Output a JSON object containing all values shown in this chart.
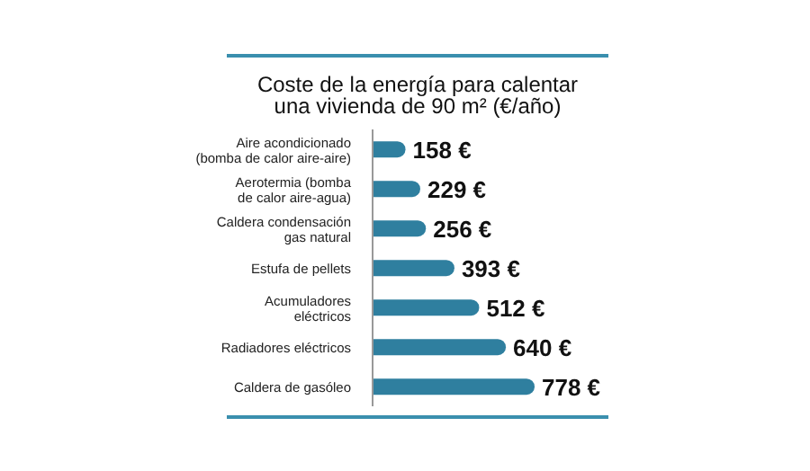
{
  "chart_data": {
    "type": "bar",
    "orientation": "horizontal",
    "title": "Coste de la energía para calentar\nuna vivienda de 90 m² (€/año)",
    "categories": [
      "Aire acondicionado\n(bomba de calor aire-aire)",
      "Aerotermia (bomba\nde calor aire-agua)",
      "Caldera condensación\ngas natural",
      "Estufa de pellets",
      "Acumuladores\neléctricos",
      "Radiadores eléctricos",
      "Caldera de gasóleo"
    ],
    "values": [
      158,
      229,
      256,
      393,
      512,
      640,
      778
    ],
    "value_labels": [
      "158 €",
      "229 €",
      "256 €",
      "393 €",
      "512 €",
      "640 €",
      "778 €"
    ],
    "color": "#2f7f9f",
    "grid": false
  }
}
